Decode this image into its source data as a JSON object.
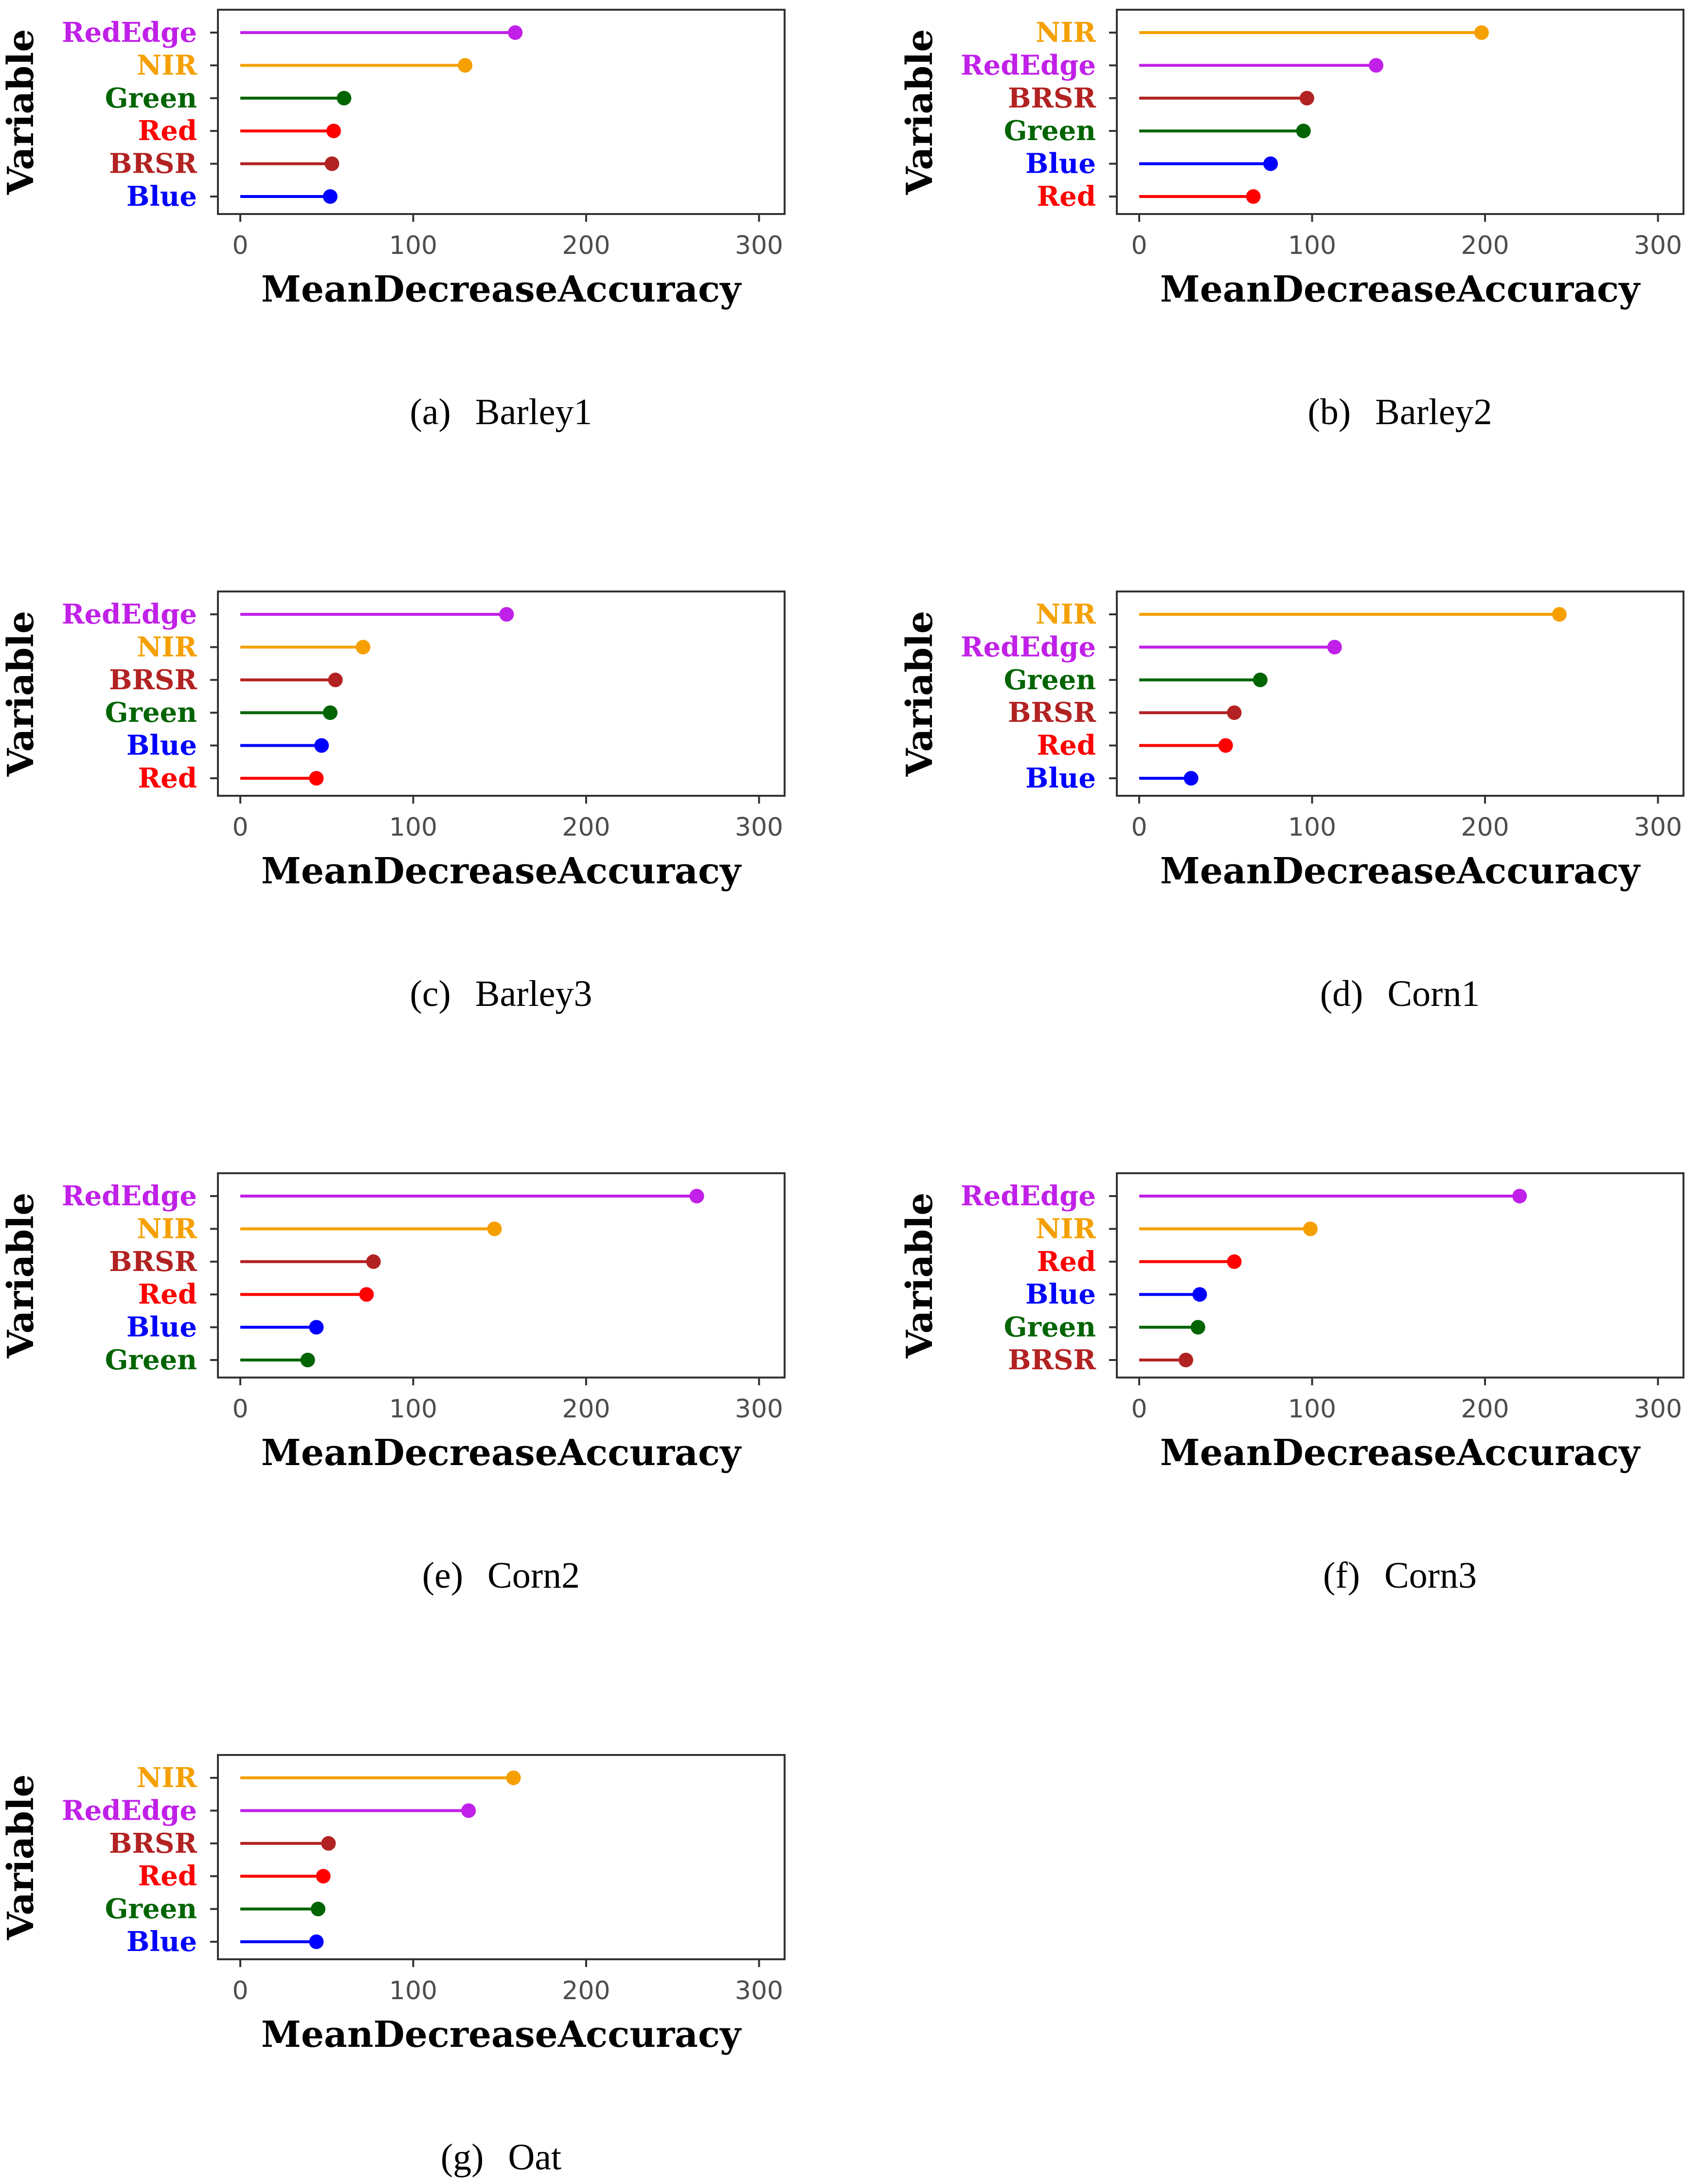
{
  "colors": {
    "RedEdge": "#c020e8",
    "NIR": "#f5a000",
    "Green": "#006400",
    "Red": "#ff0000",
    "BRSR": "#b22222",
    "Blue": "#0000ff"
  },
  "chart_data": [
    {
      "type": "lollipop",
      "panel": "(a)",
      "name": "Barley1",
      "xlabel": "MeanDecreaseAccuracy",
      "ylabel": "Variable",
      "xlim": [
        0,
        300
      ],
      "xticks": [
        "0",
        "100",
        "200",
        "300"
      ],
      "categories": [
        "RedEdge",
        "NIR",
        "Green",
        "Red",
        "BRSR",
        "Blue"
      ],
      "values": [
        159,
        130,
        60,
        54,
        53,
        52
      ]
    },
    {
      "type": "lollipop",
      "panel": "(b)",
      "name": "Barley2",
      "xlabel": "MeanDecreaseAccuracy",
      "ylabel": "Variable",
      "xlim": [
        0,
        300
      ],
      "xticks": [
        "0",
        "100",
        "200",
        "300"
      ],
      "categories": [
        "NIR",
        "RedEdge",
        "BRSR",
        "Green",
        "Blue",
        "Red"
      ],
      "values": [
        198,
        137,
        97,
        95,
        76,
        66
      ]
    },
    {
      "type": "lollipop",
      "panel": "(c)",
      "name": "Barley3",
      "xlabel": "MeanDecreaseAccuracy",
      "ylabel": "Variable",
      "xlim": [
        0,
        300
      ],
      "xticks": [
        "0",
        "100",
        "200",
        "300"
      ],
      "categories": [
        "RedEdge",
        "NIR",
        "BRSR",
        "Green",
        "Blue",
        "Red"
      ],
      "values": [
        154,
        71,
        55,
        52,
        47,
        44
      ]
    },
    {
      "type": "lollipop",
      "panel": "(d)",
      "name": "Corn1",
      "xlabel": "MeanDecreaseAccuracy",
      "ylabel": "Variable",
      "xlim": [
        0,
        300
      ],
      "xticks": [
        "0",
        "100",
        "200",
        "300"
      ],
      "categories": [
        "NIR",
        "RedEdge",
        "Green",
        "BRSR",
        "Red",
        "Blue"
      ],
      "values": [
        243,
        113,
        70,
        55,
        50,
        30
      ]
    },
    {
      "type": "lollipop",
      "panel": "(e)",
      "name": "Corn2",
      "xlabel": "MeanDecreaseAccuracy",
      "ylabel": "Variable",
      "xlim": [
        0,
        300
      ],
      "xticks": [
        "0",
        "100",
        "200",
        "300"
      ],
      "categories": [
        "RedEdge",
        "NIR",
        "BRSR",
        "Red",
        "Blue",
        "Green"
      ],
      "values": [
        264,
        147,
        77,
        73,
        44,
        39
      ]
    },
    {
      "type": "lollipop",
      "panel": "(f)",
      "name": "Corn3",
      "xlabel": "MeanDecreaseAccuracy",
      "ylabel": "Variable",
      "xlim": [
        0,
        300
      ],
      "xticks": [
        "0",
        "100",
        "200",
        "300"
      ],
      "categories": [
        "RedEdge",
        "NIR",
        "Red",
        "Blue",
        "Green",
        "BRSR"
      ],
      "values": [
        220,
        99,
        55,
        35,
        34,
        27
      ]
    },
    {
      "type": "lollipop",
      "panel": "(g)",
      "name": "Oat",
      "xlabel": "MeanDecreaseAccuracy",
      "ylabel": "Variable",
      "xlim": [
        0,
        300
      ],
      "xticks": [
        "0",
        "100",
        "200",
        "300"
      ],
      "categories": [
        "NIR",
        "RedEdge",
        "BRSR",
        "Red",
        "Green",
        "Blue"
      ],
      "values": [
        158,
        132,
        51,
        48,
        45,
        44
      ]
    }
  ]
}
